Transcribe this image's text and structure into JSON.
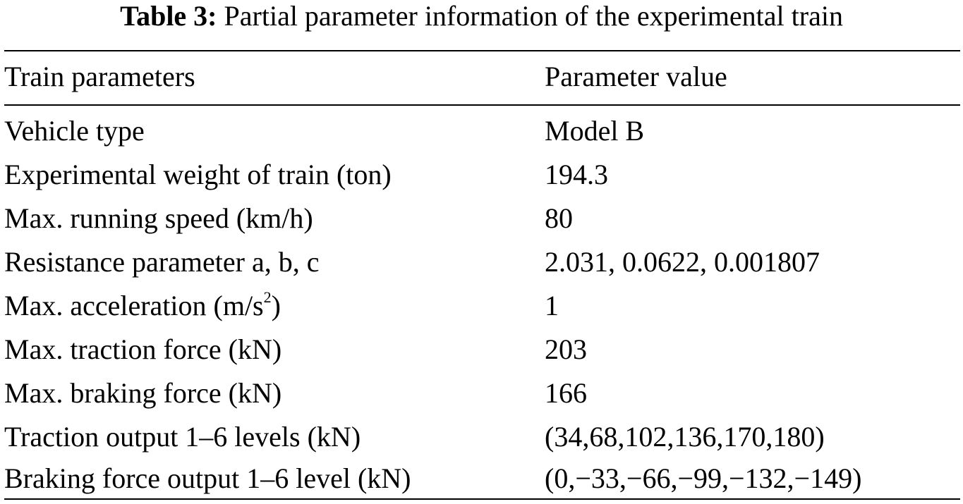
{
  "caption": {
    "label": "Table 3:",
    "text": "Partial parameter information of the experimental train"
  },
  "table": {
    "headers": [
      "Train parameters",
      "Parameter value"
    ],
    "rows": [
      {
        "parameter": "Vehicle type",
        "value": "Model B"
      },
      {
        "parameter": "Experimental weight of train (ton)",
        "value": "194.3"
      },
      {
        "parameter": "Max. running speed (km/h)",
        "value": "80"
      },
      {
        "parameter": "Resistance parameter a, b, c",
        "value": "2.031, 0.0622, 0.001807"
      },
      {
        "parameter_before_sup": "Max. acceleration (m/s",
        "parameter_sup": "2",
        "parameter_after_sup": ")",
        "value": "1"
      },
      {
        "parameter": "Max. traction force (kN)",
        "value": "203"
      },
      {
        "parameter": "Max. braking force (kN)",
        "value": "166"
      },
      {
        "parameter": "Traction output 1–6 levels (kN)",
        "value": "(34,68,102,136,170,180)"
      },
      {
        "parameter": "Braking force output 1–6 level (kN)",
        "value": "(0,−33,−66,−99,−132,−149)"
      }
    ]
  }
}
